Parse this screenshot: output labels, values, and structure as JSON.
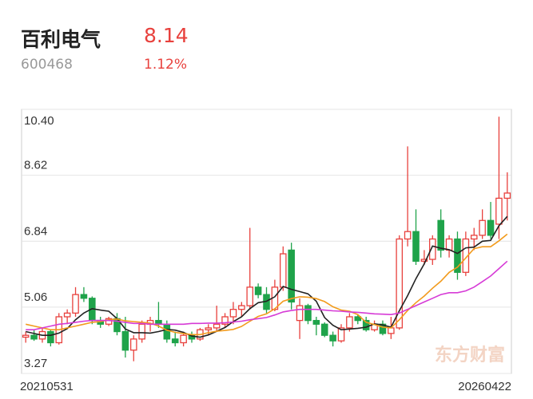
{
  "header": {
    "name": "百利电气",
    "price": "8.14",
    "code": "600468",
    "change": "1.12%"
  },
  "chart_data": {
    "type": "candlestick",
    "watermark": "东方财富",
    "up_color": "#e8413d",
    "down_color": "#1fa34a",
    "ylim": [
      3.27,
      10.4
    ],
    "yticks": [
      3.27,
      5.06,
      6.84,
      8.62,
      {
        "value": 10.4,
        "label": "10.40"
      }
    ],
    "grid": true,
    "categories": [
      "20210531",
      null,
      null,
      null,
      null,
      null,
      null,
      null,
      null,
      null,
      null,
      null,
      null,
      null,
      null,
      null,
      null,
      null,
      null,
      null,
      null,
      null,
      null,
      null,
      null,
      null,
      null,
      null,
      null,
      null,
      null,
      null,
      null,
      null,
      null,
      null,
      null,
      null,
      null,
      null,
      null,
      null,
      null,
      null,
      null,
      null,
      null,
      null,
      null,
      null,
      null,
      null,
      null,
      null,
      null,
      null,
      null,
      null,
      "20260422"
    ],
    "candles": [
      [
        4.25,
        4.4,
        4.1,
        4.3
      ],
      [
        4.3,
        4.45,
        4.15,
        4.2
      ],
      [
        4.2,
        4.5,
        4.1,
        4.4
      ],
      [
        4.4,
        4.45,
        4.0,
        4.1
      ],
      [
        4.1,
        4.9,
        4.05,
        4.8
      ],
      [
        4.8,
        5.0,
        4.6,
        4.9
      ],
      [
        4.9,
        5.6,
        4.8,
        5.4
      ],
      [
        5.4,
        5.6,
        5.2,
        5.3
      ],
      [
        5.3,
        5.35,
        4.6,
        4.7
      ],
      [
        4.7,
        4.8,
        4.5,
        4.6
      ],
      [
        4.6,
        4.8,
        4.55,
        4.75
      ],
      [
        4.75,
        4.9,
        4.3,
        4.4
      ],
      [
        4.4,
        4.8,
        3.7,
        3.9
      ],
      [
        3.9,
        4.3,
        3.6,
        4.2
      ],
      [
        4.2,
        4.7,
        4.1,
        4.6
      ],
      [
        4.6,
        4.8,
        4.4,
        4.7
      ],
      [
        4.7,
        5.2,
        4.5,
        4.6
      ],
      [
        4.6,
        4.7,
        4.1,
        4.2
      ],
      [
        4.2,
        4.4,
        4.0,
        4.1
      ],
      [
        4.1,
        4.4,
        4.0,
        4.3
      ],
      [
        4.3,
        4.4,
        4.1,
        4.2
      ],
      [
        4.2,
        4.5,
        4.15,
        4.45
      ],
      [
        4.45,
        4.6,
        4.3,
        4.5
      ],
      [
        4.5,
        5.1,
        4.4,
        4.6
      ],
      [
        4.6,
        4.9,
        4.5,
        4.8
      ],
      [
        4.8,
        5.2,
        4.6,
        5.0
      ],
      [
        5.0,
        5.2,
        4.8,
        5.1
      ],
      [
        5.1,
        7.2,
        5.0,
        5.6
      ],
      [
        5.6,
        5.7,
        5.3,
        5.4
      ],
      [
        5.4,
        5.6,
        4.9,
        5.0
      ],
      [
        5.0,
        5.8,
        4.95,
        5.6
      ],
      [
        5.6,
        6.7,
        5.5,
        6.5
      ],
      [
        6.6,
        6.8,
        5.0,
        5.2
      ],
      [
        4.7,
        5.3,
        4.2,
        5.1
      ],
      [
        5.1,
        5.15,
        4.6,
        4.7
      ],
      [
        4.7,
        4.8,
        4.3,
        4.6
      ],
      [
        4.6,
        4.65,
        4.25,
        4.3
      ],
      [
        4.3,
        4.4,
        4.0,
        4.15
      ],
      [
        4.15,
        4.6,
        4.1,
        4.5
      ],
      [
        4.5,
        4.9,
        4.4,
        4.8
      ],
      [
        4.8,
        4.85,
        4.6,
        4.7
      ],
      [
        4.7,
        4.8,
        4.4,
        4.45
      ],
      [
        4.45,
        4.7,
        4.4,
        4.6
      ],
      [
        4.6,
        4.7,
        4.3,
        4.35
      ],
      [
        4.35,
        4.8,
        4.2,
        4.5
      ],
      [
        4.5,
        7.0,
        4.45,
        6.9
      ],
      [
        6.9,
        9.4,
        6.7,
        7.1
      ],
      [
        7.1,
        7.7,
        6.2,
        6.3
      ],
      [
        6.3,
        6.6,
        6.2,
        6.35
      ],
      [
        6.35,
        7.0,
        6.2,
        6.9
      ],
      [
        7.4,
        7.7,
        6.4,
        6.6
      ],
      [
        6.6,
        7.0,
        6.4,
        6.9
      ],
      [
        6.9,
        7.1,
        5.8,
        6.0
      ],
      [
        6.0,
        7.1,
        5.9,
        6.9
      ],
      [
        6.9,
        7.2,
        6.6,
        7.0
      ],
      [
        7.0,
        7.7,
        6.9,
        7.4
      ],
      [
        7.4,
        7.9,
        6.9,
        7.0
      ],
      [
        7.3,
        10.2,
        6.9,
        8.0
      ],
      [
        8.0,
        8.7,
        7.4,
        8.14
      ]
    ],
    "series": [
      {
        "color": "#222222",
        "values": [
          4.4,
          4.35,
          4.3,
          4.3,
          4.36,
          4.48,
          4.72,
          4.9,
          5.02,
          4.98,
          4.95,
          4.75,
          4.47,
          4.37,
          4.37,
          4.36,
          4.4,
          4.46,
          4.44,
          4.38,
          4.28,
          4.25,
          4.31,
          4.41,
          4.51,
          4.67,
          4.8,
          5.02,
          5.18,
          5.22,
          5.34,
          5.62,
          5.54,
          5.48,
          5.42,
          5.22,
          4.78,
          4.57,
          4.45,
          4.47,
          4.49,
          4.52,
          4.61,
          4.58,
          4.52,
          4.96,
          5.37,
          5.83,
          6.23,
          6.71,
          6.65,
          6.61,
          6.51,
          6.66,
          6.68,
          6.84,
          6.86,
          7.26,
          7.51
        ]
      },
      {
        "color": "#f29b1d",
        "values": [
          4.6,
          4.55,
          4.5,
          4.45,
          4.45,
          4.5,
          4.55,
          4.6,
          4.65,
          4.67,
          4.72,
          4.74,
          4.69,
          4.67,
          4.65,
          4.63,
          4.55,
          4.44,
          4.38,
          4.35,
          4.32,
          4.32,
          4.37,
          4.41,
          4.43,
          4.46,
          4.54,
          4.68,
          4.81,
          4.88,
          5.02,
          5.22,
          5.29,
          5.34,
          5.33,
          5.29,
          5.21,
          5.07,
          4.98,
          4.95,
          4.86,
          4.65,
          4.59,
          4.52,
          4.5,
          4.72,
          4.97,
          5.18,
          5.36,
          5.57,
          5.76,
          6.0,
          6.14,
          6.39,
          6.64,
          6.69,
          6.69,
          6.85,
          7.03
        ]
      },
      {
        "color": "#d63bd6",
        "values": [
          4.45,
          4.45,
          4.5,
          4.55,
          4.6,
          4.62,
          4.65,
          4.68,
          4.7,
          4.7,
          4.7,
          4.68,
          4.65,
          4.62,
          4.62,
          4.6,
          4.6,
          4.6,
          4.6,
          4.6,
          4.62,
          4.62,
          4.63,
          4.63,
          4.64,
          4.66,
          4.68,
          4.72,
          4.75,
          4.78,
          4.85,
          4.93,
          4.97,
          5.0,
          5.0,
          5.0,
          4.98,
          4.96,
          4.95,
          4.93,
          4.92,
          4.9,
          4.88,
          4.87,
          4.86,
          4.9,
          5.0,
          5.1,
          5.2,
          5.3,
          5.4,
          5.45,
          5.45,
          5.5,
          5.6,
          5.75,
          5.9,
          6.1,
          6.3
        ]
      }
    ]
  }
}
